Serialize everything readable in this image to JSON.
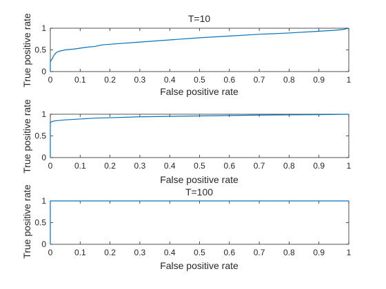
{
  "chart_data": [
    {
      "type": "line",
      "title": "T=10",
      "xlabel": "False positive rate",
      "ylabel": "True positive rate",
      "xlim": [
        0,
        1
      ],
      "ylim": [
        0,
        1
      ],
      "xticks": [
        "0",
        "0.1",
        "0.2",
        "0.3",
        "0.4",
        "0.5",
        "0.6",
        "0.7",
        "0.8",
        "0.9",
        "1"
      ],
      "yticks": [
        "0",
        "0.5",
        "1"
      ],
      "grid": false,
      "color": "#0072BD",
      "series": [
        {
          "x": [
            0,
            0,
            0.002,
            0.005,
            0.01,
            0.015,
            0.02,
            0.03,
            0.05,
            0.08,
            0.1,
            0.12,
            0.15,
            0.17,
            0.18,
            0.2,
            0.3,
            0.4,
            0.5,
            0.6,
            0.7,
            0.8,
            0.9,
            0.95,
            0.98,
            1
          ],
          "y": [
            0,
            0.22,
            0.25,
            0.28,
            0.35,
            0.4,
            0.44,
            0.47,
            0.5,
            0.52,
            0.54,
            0.56,
            0.58,
            0.61,
            0.62,
            0.63,
            0.68,
            0.73,
            0.78,
            0.82,
            0.86,
            0.89,
            0.93,
            0.95,
            0.97,
            1.0
          ]
        }
      ]
    },
    {
      "type": "line",
      "title": "",
      "xlabel": "False positive rate",
      "ylabel": "True positive rate",
      "xlim": [
        0,
        1
      ],
      "ylim": [
        0,
        1
      ],
      "xticks": [
        "0",
        "0.1",
        "0.2",
        "0.3",
        "0.4",
        "0.5",
        "0.6",
        "0.7",
        "0.8",
        "0.9",
        "1"
      ],
      "yticks": [
        "0",
        "0.5",
        "1"
      ],
      "grid": false,
      "color": "#0072BD",
      "series": [
        {
          "x": [
            0,
            0,
            0.005,
            0.01,
            0.02,
            0.05,
            0.1,
            0.15,
            0.2,
            0.3,
            0.4,
            0.5,
            0.6,
            0.7,
            0.8,
            0.9,
            1
          ],
          "y": [
            0,
            0.8,
            0.83,
            0.84,
            0.85,
            0.87,
            0.89,
            0.91,
            0.92,
            0.94,
            0.95,
            0.96,
            0.97,
            0.98,
            0.985,
            0.99,
            1.0
          ]
        }
      ]
    },
    {
      "type": "line",
      "title": "T=100",
      "xlabel": "False positive rate",
      "ylabel": "True positive rate",
      "xlim": [
        0,
        1
      ],
      "ylim": [
        0,
        1
      ],
      "xticks": [
        "0",
        "0.1",
        "0.2",
        "0.3",
        "0.4",
        "0.5",
        "0.6",
        "0.7",
        "0.8",
        "0.9",
        "1"
      ],
      "yticks": [
        "0",
        "0.5",
        "1"
      ],
      "grid": false,
      "color": "#0072BD",
      "series": [
        {
          "x": [
            0,
            0,
            0.002,
            1
          ],
          "y": [
            0,
            1.0,
            1.0,
            1.0
          ]
        }
      ]
    }
  ]
}
